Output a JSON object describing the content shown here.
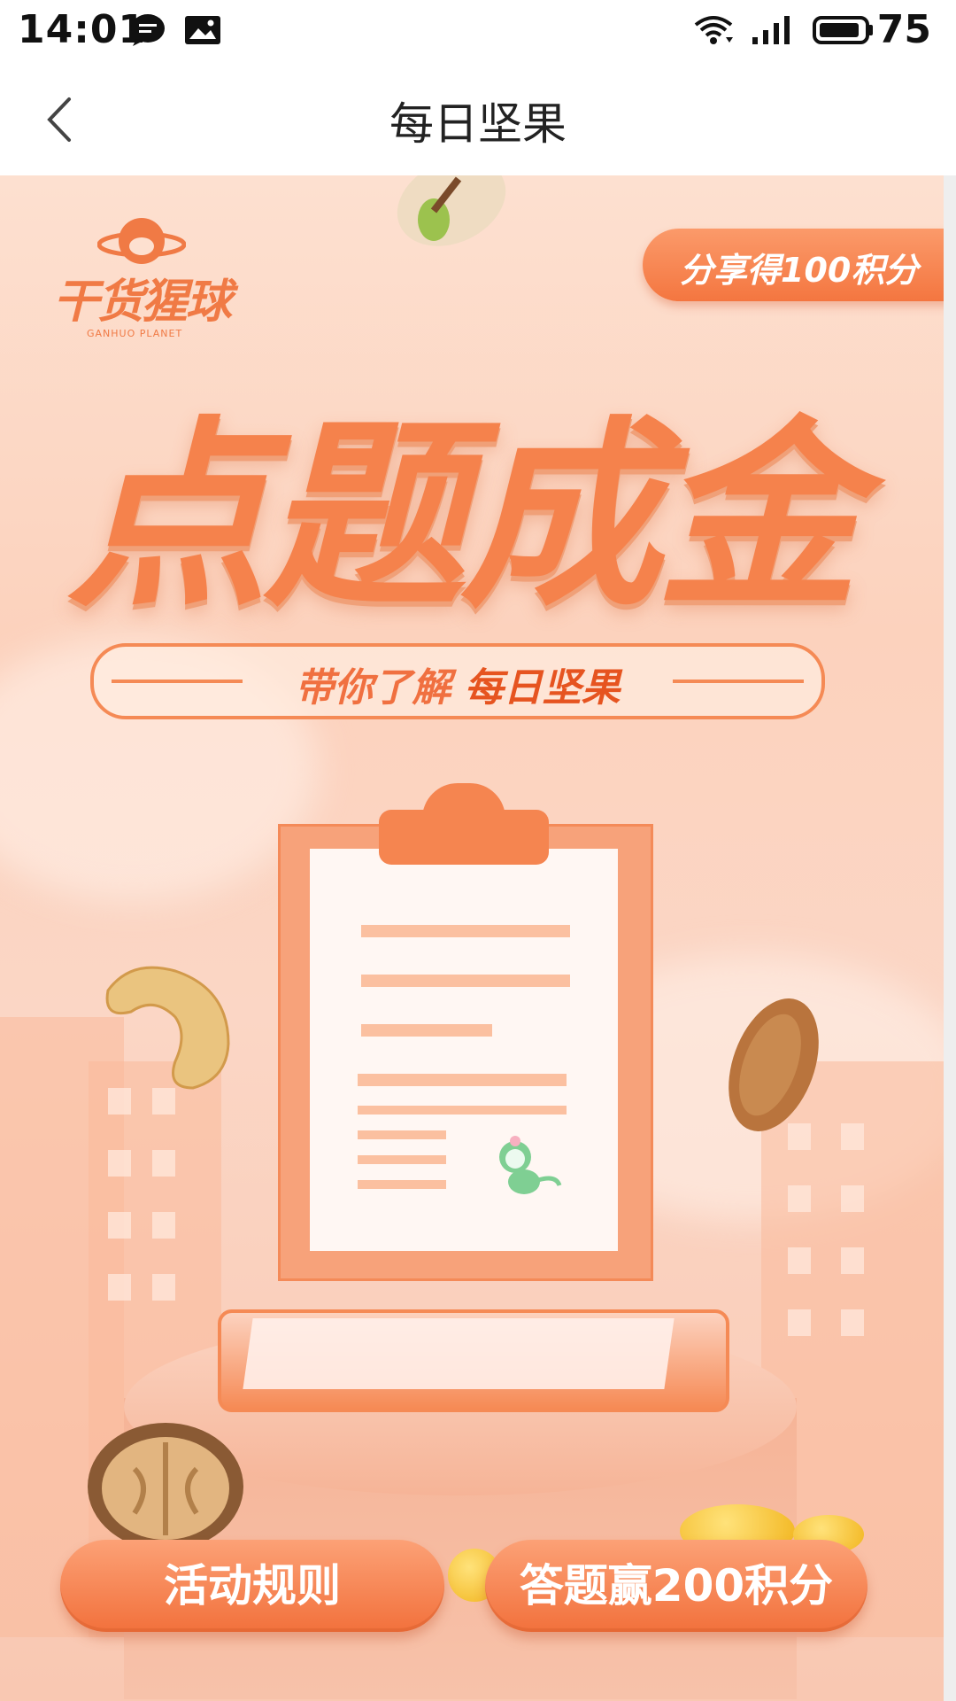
{
  "status_bar": {
    "time": "14:01",
    "battery": "75",
    "icons": [
      "chat-bubble-icon",
      "image-icon",
      "wifi-icon",
      "signal-icon",
      "battery-icon"
    ]
  },
  "nav": {
    "title": "每日坚果",
    "back_icon": "chevron-left-icon"
  },
  "banner": {
    "logo_text": "干货猩球",
    "logo_sub": "GANHUO PLANET",
    "share_label": "分享得100积分",
    "headline": "点题成金",
    "subtitle_prefix": "带你了解 ",
    "subtitle_emphasis": "每日坚果",
    "rules_button": "活动规则",
    "quiz_button": "答题赢200积分"
  },
  "colors": {
    "accent": "#f5824c",
    "button": "#f2713c",
    "background": "#fcd2bd"
  }
}
